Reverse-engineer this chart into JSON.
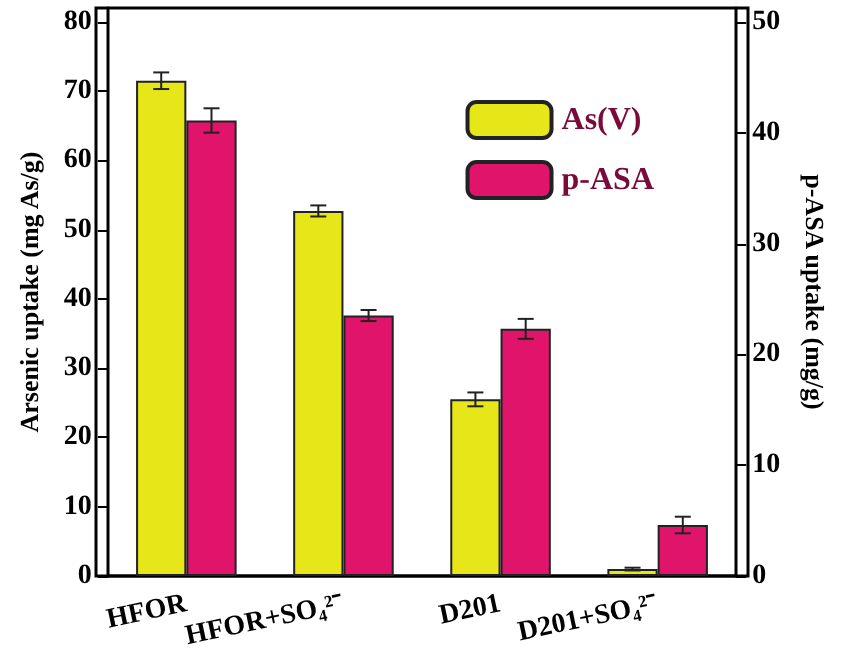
{
  "chart_data": {
    "type": "bar",
    "ylabel": "Arsenic uptake (mg As/g)",
    "y2label": "p-ASA uptake (mg/g)",
    "categories": [
      "HFOR",
      "HFOR+SO₄²⁻",
      "D201",
      "D201+SO₄²⁻"
    ],
    "series": [
      {
        "name": "As(V)",
        "color": "#e6e619",
        "values": [
          71.5,
          52.7,
          25.5,
          1.0
        ],
        "errors": [
          1.2,
          0.8,
          1.0,
          0.2
        ]
      },
      {
        "name": "p-ASA",
        "color": "#e0146a",
        "axis": "y2",
        "values": [
          41.1,
          23.5,
          22.3,
          4.6
        ],
        "errors": [
          1.1,
          0.5,
          0.9,
          0.75
        ]
      }
    ],
    "ylim": [
      0,
      82
    ],
    "yticks": [
      0,
      10,
      20,
      30,
      40,
      50,
      60,
      70,
      80
    ],
    "y2lim": [
      0,
      51.25
    ],
    "y2ticks": [
      0,
      10,
      20,
      30,
      40,
      50
    ],
    "legend": "top right",
    "grid": false
  }
}
